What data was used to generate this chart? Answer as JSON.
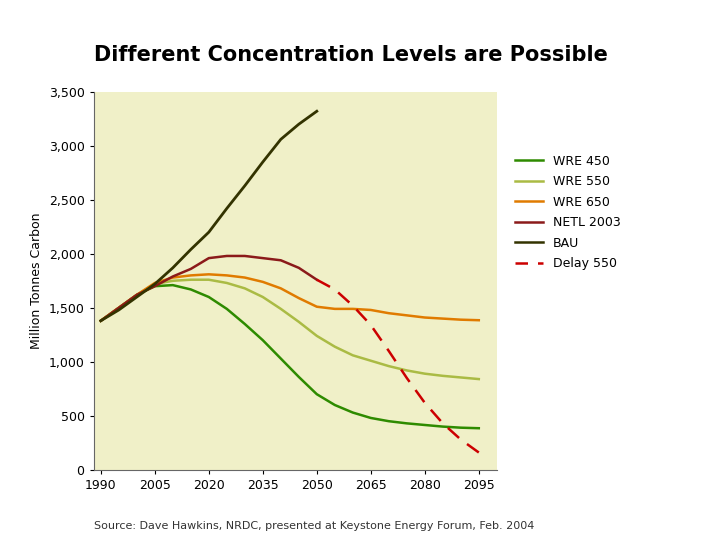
{
  "title": "Different Concentration Levels are Possible",
  "ylabel": "Million Tonnes Carbon",
  "source": "Source: Dave Hawkins, NRDC, presented at Keystone Energy Forum, Feb. 2004",
  "background_color": "#f0f0c8",
  "xlim": [
    1988,
    2100
  ],
  "ylim": [
    0,
    3500
  ],
  "xticks": [
    1990,
    2005,
    2020,
    2035,
    2050,
    2065,
    2080,
    2095
  ],
  "yticks": [
    0,
    500,
    1000,
    1500,
    2000,
    2500,
    3000,
    3500
  ],
  "series": {
    "WRE 450": {
      "color": "#2e8b00",
      "linestyle": "solid",
      "linewidth": 1.8,
      "x": [
        1990,
        2000,
        2005,
        2010,
        2015,
        2020,
        2025,
        2030,
        2035,
        2040,
        2045,
        2050,
        2055,
        2060,
        2065,
        2070,
        2075,
        2080,
        2085,
        2090,
        2095
      ],
      "y": [
        1380,
        1620,
        1700,
        1710,
        1670,
        1600,
        1490,
        1350,
        1200,
        1030,
        860,
        700,
        600,
        530,
        480,
        450,
        430,
        415,
        400,
        390,
        385
      ]
    },
    "WRE 550": {
      "color": "#aabb44",
      "linestyle": "solid",
      "linewidth": 1.8,
      "x": [
        1990,
        2000,
        2005,
        2010,
        2015,
        2020,
        2025,
        2030,
        2035,
        2040,
        2045,
        2050,
        2055,
        2060,
        2065,
        2070,
        2075,
        2080,
        2085,
        2090,
        2095
      ],
      "y": [
        1380,
        1620,
        1720,
        1750,
        1760,
        1760,
        1730,
        1680,
        1600,
        1490,
        1370,
        1240,
        1140,
        1060,
        1010,
        960,
        920,
        890,
        870,
        855,
        840
      ]
    },
    "WRE 650": {
      "color": "#e07b00",
      "linestyle": "solid",
      "linewidth": 1.8,
      "x": [
        1990,
        2000,
        2005,
        2010,
        2015,
        2020,
        2025,
        2030,
        2035,
        2040,
        2045,
        2050,
        2055,
        2060,
        2065,
        2070,
        2075,
        2080,
        2085,
        2090,
        2095
      ],
      "y": [
        1380,
        1620,
        1730,
        1780,
        1800,
        1810,
        1800,
        1780,
        1740,
        1680,
        1590,
        1510,
        1490,
        1490,
        1480,
        1450,
        1430,
        1410,
        1400,
        1390,
        1385
      ]
    },
    "NETL 2003": {
      "color": "#8b1a1a",
      "linestyle": "solid",
      "linewidth": 1.8,
      "x": [
        1990,
        2000,
        2005,
        2010,
        2015,
        2020,
        2025,
        2030,
        2035,
        2040,
        2045,
        2050
      ],
      "y": [
        1380,
        1620,
        1700,
        1790,
        1860,
        1960,
        1980,
        1980,
        1960,
        1940,
        1870,
        1760
      ]
    },
    "BAU": {
      "color": "#333300",
      "linestyle": "solid",
      "linewidth": 2.0,
      "x": [
        1990,
        1995,
        2000,
        2005,
        2010,
        2015,
        2020,
        2025,
        2030,
        2035,
        2040,
        2045,
        2050
      ],
      "y": [
        1380,
        1480,
        1600,
        1720,
        1870,
        2040,
        2200,
        2420,
        2630,
        2850,
        3060,
        3200,
        3320
      ]
    },
    "Delay 550": {
      "color": "#cc0000",
      "linestyle": "dashed",
      "linewidth": 1.8,
      "x": [
        2050,
        2055,
        2060,
        2065,
        2070,
        2075,
        2080,
        2085,
        2090,
        2095
      ],
      "y": [
        1760,
        1670,
        1520,
        1340,
        1100,
        850,
        620,
        430,
        280,
        160
      ]
    }
  },
  "legend_labels": [
    "WRE 450",
    "WRE 550",
    "WRE 650",
    "NETL 2003",
    "BAU",
    "Delay 550"
  ]
}
